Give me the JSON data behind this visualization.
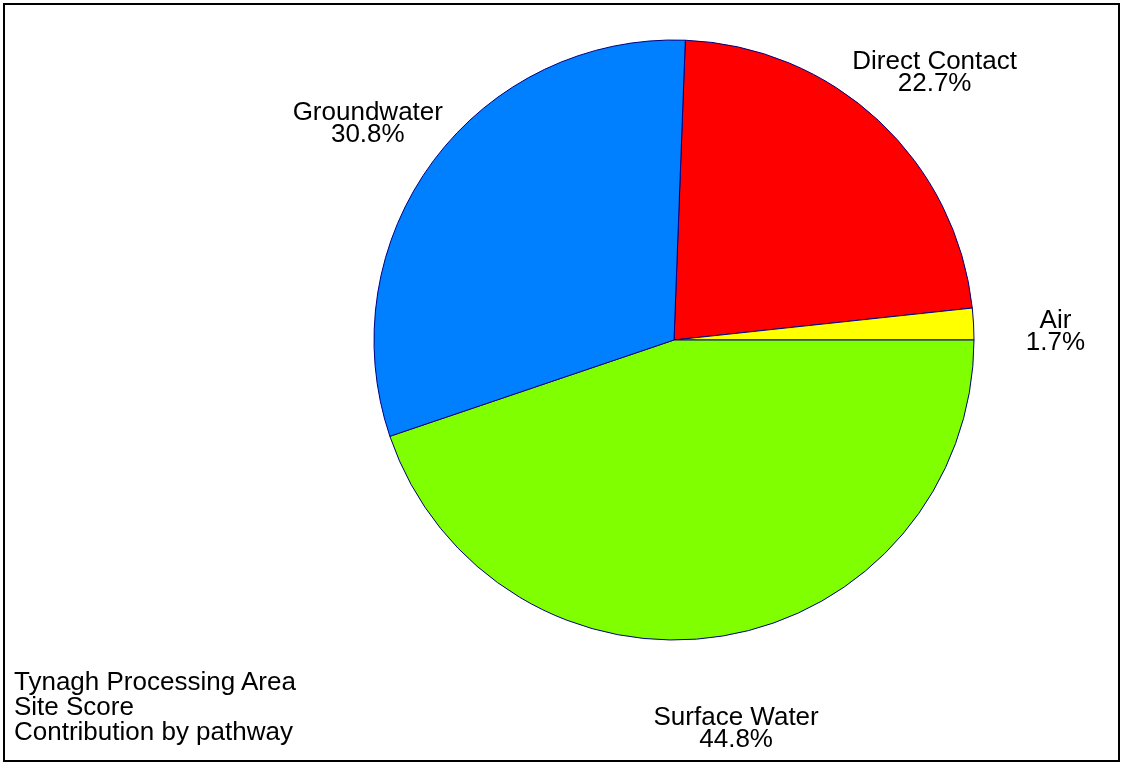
{
  "chart_data": {
    "type": "pie",
    "categories": [
      "Direct Contact",
      "Air",
      "Surface Water",
      "Groundwater"
    ],
    "values": [
      22.7,
      1.7,
      44.8,
      30.8
    ],
    "value_labels": [
      "22.7%",
      "1.7%",
      "44.8%",
      "30.8%"
    ],
    "colors": [
      "#ff0000",
      "#ffff00",
      "#80ff00",
      "#0080ff"
    ],
    "annotations": [
      "Tynagh Processing Area",
      "Site Score",
      "Contribution by pathway"
    ],
    "legend": false
  }
}
